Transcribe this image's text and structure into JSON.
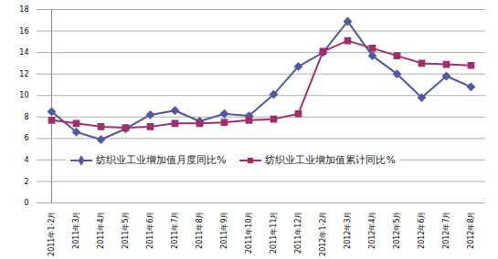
{
  "chart_data": {
    "type": "line",
    "categories": [
      "2011年1-2月",
      "2011年3月",
      "2011年4月",
      "2011年5月",
      "2011年6月",
      "2011年7月",
      "2011年8月",
      "2011年9月",
      "2011年10月",
      "2011年11月",
      "2011年12月",
      "2012年1-2月",
      "2012年3月",
      "2012年4月",
      "2012年5月",
      "2012年6月",
      "2012年7月",
      "2012年8月"
    ],
    "series": [
      {
        "name": "纺织业工业增加值月度同比%",
        "color": "#4f5aa0",
        "marker": "diamond",
        "values": [
          8.5,
          6.6,
          5.9,
          6.9,
          8.2,
          8.6,
          7.6,
          8.3,
          8.1,
          10.1,
          12.7,
          14.0,
          16.9,
          13.7,
          12.0,
          9.8,
          11.8,
          10.8
        ]
      },
      {
        "name": "纺织业工业增加值累计同比%",
        "color": "#9e2f6b",
        "marker": "square",
        "values": [
          7.7,
          7.4,
          7.1,
          7.0,
          7.1,
          7.4,
          7.4,
          7.5,
          7.7,
          7.8,
          8.3,
          14.1,
          15.1,
          14.4,
          13.7,
          13.0,
          12.9,
          12.8
        ]
      }
    ],
    "ylim": [
      0,
      18
    ],
    "yticks": [
      0,
      2,
      4,
      6,
      8,
      10,
      12,
      14,
      16,
      18
    ],
    "grid": true,
    "legend": "lower left"
  }
}
